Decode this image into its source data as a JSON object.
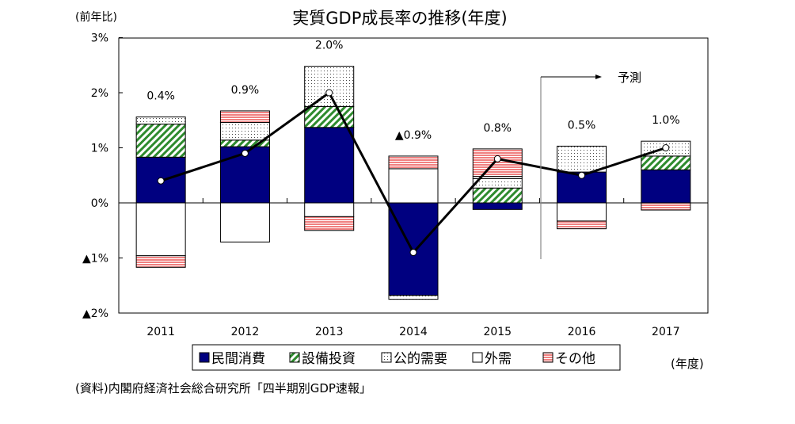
{
  "chart_data": {
    "type": "bar",
    "title": "実質GDP成長率の推移(年度)",
    "ylabel": "(前年比)",
    "xlabel": "(年度)",
    "source": "(資料)内閣府経済社会総合研究所「四半期別GDP速報」",
    "forecast_label": "予測",
    "categories": [
      "2011",
      "2012",
      "2013",
      "2014",
      "2015",
      "2016",
      "2017"
    ],
    "ylim": [
      -2,
      3
    ],
    "yticks": [
      {
        "v": 3,
        "label": "3%"
      },
      {
        "v": 2,
        "label": "2%"
      },
      {
        "v": 1,
        "label": "1%"
      },
      {
        "v": 0,
        "label": "0%"
      },
      {
        "v": -1,
        "label": "▲1%"
      },
      {
        "v": -2,
        "label": "▲2%"
      }
    ],
    "series": [
      {
        "name": "民間消費",
        "color": "#000080",
        "pattern": "solid",
        "values": [
          0.83,
          1.02,
          1.37,
          -1.68,
          -0.12,
          0.56,
          0.6
        ]
      },
      {
        "name": "設備投資",
        "color": "#2e8b2e",
        "pattern": "hatch",
        "values": [
          0.6,
          0.12,
          0.38,
          0.0,
          0.27,
          0.0,
          0.25
        ]
      },
      {
        "name": "公的需要",
        "color": "#555555",
        "pattern": "dots",
        "values": [
          0.13,
          0.32,
          0.73,
          -0.07,
          0.17,
          0.47,
          0.27
        ]
      },
      {
        "name": "外需",
        "color": "#ffffff",
        "pattern": "white",
        "values": [
          -0.96,
          -0.71,
          -0.25,
          0.62,
          0.04,
          -0.33,
          0.0
        ]
      },
      {
        "name": "その他",
        "color": "#f08080",
        "pattern": "stripes",
        "values": [
          -0.21,
          0.21,
          -0.25,
          0.23,
          0.5,
          -0.14,
          -0.13
        ]
      }
    ],
    "line": {
      "name": "実質GDP成長率",
      "values": [
        0.4,
        0.9,
        2.0,
        -0.9,
        0.8,
        0.5,
        1.0
      ],
      "labels": [
        "0.4%",
        "0.9%",
        "2.0%",
        "▲0.9%",
        "0.8%",
        "0.5%",
        "1.0%"
      ]
    },
    "forecast_from": "2016"
  }
}
